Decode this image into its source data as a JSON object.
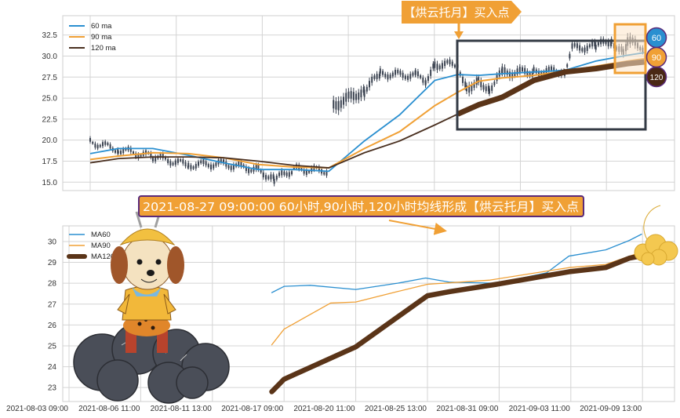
{
  "colors": {
    "ma60": "#2a8fd0",
    "ma90": "#f0a035",
    "ma120": "#5a3418",
    "candle": "#3a4250",
    "banner": "#f0a035",
    "banner_border": "#5a2a7a",
    "box": "#333a44"
  },
  "annotations": {
    "top_banner": "【烘云托月】买入点",
    "bottom_banner": "2021-08-27 09:00:00 60小时,90小时,120小时均线形成【烘云托月】买入点",
    "badge_60": "60",
    "badge_90": "90",
    "badge_120": "120"
  },
  "images": [
    "dog-on-dark-cloud",
    "crescent-moon-on-golden-cloud"
  ],
  "chart_data": [
    {
      "type": "line",
      "title": "",
      "legend": {
        "position": "top-left",
        "entries": [
          "60 ma",
          "90 ma",
          "120 ma"
        ]
      },
      "grid": true,
      "ylim": [
        14.0,
        34.8
      ],
      "yticks": [
        "15.0",
        "17.5",
        "20.0",
        "22.5",
        "25.0",
        "27.5",
        "30.0",
        "32.5"
      ],
      "x_range": [
        "2021-08-03 09:00",
        "2021-09-09 13:00"
      ],
      "candles_low_high": [
        [
          "2021-08-03 09:00",
          19.6,
          20.0
        ],
        [
          "2021-08-04 15:00",
          18.7,
          19.1
        ],
        [
          "2021-08-06 04:00",
          17.8,
          18.3
        ],
        [
          "2021-08-08 14:00",
          16.8,
          17.3
        ],
        [
          "2021-08-11 04:00",
          16.9,
          17.5
        ],
        [
          "2021-08-14 01:00",
          16.2,
          16.8
        ],
        [
          "2021-08-15 09:00",
          15.0,
          15.6
        ],
        [
          "2021-08-17 01:00",
          16.3,
          16.8
        ],
        [
          "2021-08-18 18:00",
          16.1,
          16.6
        ],
        [
          "2021-08-18 23:00",
          23.3,
          25.0
        ],
        [
          "2021-08-20 08:00",
          25.3,
          26.5
        ],
        [
          "2021-08-21 10:00",
          27.6,
          28.2
        ],
        [
          "2021-08-24 00:00",
          27.4,
          28.0
        ],
        [
          "2021-08-24 18:00",
          26.8,
          27.5
        ],
        [
          "2021-08-25 10:00",
          28.5,
          29.5
        ],
        [
          "2021-08-27 08:00",
          28.8,
          29.2
        ],
        [
          "2021-08-28 02:00",
          25.6,
          26.8
        ],
        [
          "2021-08-29 02:00",
          26.5,
          27.5
        ],
        [
          "2021-08-30 00:00",
          25.8,
          26.5
        ],
        [
          "2021-08-31 02:00",
          27.5,
          28.5
        ],
        [
          "2021-09-01 15:00",
          27.8,
          28.5
        ],
        [
          "2021-09-03 00:00",
          28.0,
          28.5
        ],
        [
          "2021-09-03 08:00",
          30.6,
          31.3
        ],
        [
          "2021-09-05 07:00",
          30.8,
          31.5
        ],
        [
          "2021-09-06 16:00",
          31.5,
          32.2
        ],
        [
          "2021-09-07 17:00",
          30.0,
          30.8
        ],
        [
          "2021-09-08 02:00",
          31.0,
          32.5
        ],
        [
          "2021-09-09 13:00",
          30.8,
          31.2
        ]
      ],
      "series": [
        {
          "name": "60 ma",
          "points": [
            [
              "2021-08-03 09:00",
              18.4
            ],
            [
              "2021-08-04 15:00",
              19.0
            ],
            [
              "2021-08-06 04:00",
              19.0
            ],
            [
              "2021-08-08 14:00",
              18.2
            ],
            [
              "2021-08-11 04:00",
              17.3
            ],
            [
              "2021-08-14 01:00",
              16.5
            ],
            [
              "2021-08-17 01:00",
              16.5
            ],
            [
              "2021-08-18 18:00",
              16.3
            ],
            [
              "2021-08-20 08:00",
              19.9
            ],
            [
              "2021-08-22 20:00",
              23.0
            ],
            [
              "2021-08-25 10:00",
              27.1
            ],
            [
              "2021-08-27 08:00",
              27.8
            ],
            [
              "2021-08-29 02:00",
              27.7
            ],
            [
              "2021-08-31 02:00",
              27.9
            ],
            [
              "2021-09-01 15:00",
              28.1
            ],
            [
              "2021-09-03 00:00",
              28.3
            ],
            [
              "2021-09-05 07:00",
              29.4
            ],
            [
              "2021-09-08 02:00",
              30.1
            ],
            [
              "2021-09-09 13:00",
              30.4
            ]
          ]
        },
        {
          "name": "90 ma",
          "points": [
            [
              "2021-08-03 09:00",
              17.7
            ],
            [
              "2021-08-04 15:00",
              18.1
            ],
            [
              "2021-08-06 04:00",
              18.5
            ],
            [
              "2021-08-08 14:00",
              18.4
            ],
            [
              "2021-08-11 04:00",
              17.9
            ],
            [
              "2021-08-14 01:00",
              17.1
            ],
            [
              "2021-08-17 01:00",
              16.8
            ],
            [
              "2021-08-18 18:00",
              16.7
            ],
            [
              "2021-08-20 08:00",
              19.0
            ],
            [
              "2021-08-22 20:00",
              21.0
            ],
            [
              "2021-08-25 10:00",
              24.1
            ],
            [
              "2021-08-27 08:00",
              25.7
            ],
            [
              "2021-08-29 02:00",
              27.0
            ],
            [
              "2021-08-31 02:00",
              27.4
            ],
            [
              "2021-09-01 15:00",
              27.7
            ],
            [
              "2021-09-03 00:00",
              28.2
            ],
            [
              "2021-09-05 07:00",
              28.8
            ],
            [
              "2021-09-08 02:00",
              29.4
            ],
            [
              "2021-09-09 13:00",
              29.7
            ]
          ]
        },
        {
          "name": "120 ma",
          "points": [
            [
              "2021-08-03 09:00",
              17.3
            ],
            [
              "2021-08-04 15:00",
              17.8
            ],
            [
              "2021-08-06 04:00",
              18.0
            ],
            [
              "2021-08-08 14:00",
              18.0
            ],
            [
              "2021-08-11 04:00",
              17.9
            ],
            [
              "2021-08-14 01:00",
              17.5
            ],
            [
              "2021-08-17 01:00",
              17.0
            ],
            [
              "2021-08-18 18:00",
              16.7
            ],
            [
              "2021-08-20 08:00",
              18.5
            ],
            [
              "2021-08-22 20:00",
              19.9
            ],
            [
              "2021-08-25 10:00",
              21.8
            ],
            [
              "2021-08-27 08:00",
              23.1
            ],
            [
              "2021-08-29 02:00",
              24.2
            ],
            [
              "2021-08-31 02:00",
              25.1
            ],
            [
              "2021-09-01 15:00",
              27.1
            ],
            [
              "2021-09-03 00:00",
              28.1
            ],
            [
              "2021-09-05 07:00",
              28.5
            ],
            [
              "2021-09-08 02:00",
              29.1
            ],
            [
              "2021-09-09 13:00",
              29.3
            ]
          ]
        }
      ]
    },
    {
      "type": "line",
      "title": "",
      "legend": {
        "position": "top-left",
        "entries": [
          "MA60",
          "MA90",
          "MA120"
        ]
      },
      "grid": true,
      "ylim": [
        22.33,
        30.75
      ],
      "yticks": [
        "23",
        "24",
        "25",
        "26",
        "27",
        "28",
        "29",
        "30"
      ],
      "xticks": [
        "2021-08-03 09:00",
        "2021-08-06 11:00",
        "2021-08-11 13:00",
        "2021-08-17 09:00",
        "2021-08-20 11:00",
        "2021-08-25 13:00",
        "2021-08-31 09:00",
        "2021-09-03 11:00",
        "2021-09-09 13:00"
      ],
      "series": [
        {
          "name": "MA60",
          "points": [
            [
              "2021-08-16 09:00",
              27.55
            ],
            [
              "2021-08-17 09:00",
              27.85
            ],
            [
              "2021-08-18 12:00",
              27.9
            ],
            [
              "2021-08-20 11:00",
              27.7
            ],
            [
              "2021-08-23 10:00",
              28.0
            ],
            [
              "2021-08-25 10:00",
              28.25
            ],
            [
              "2021-08-27 09:00",
              28.05
            ],
            [
              "2021-08-31 04:00",
              28.0
            ],
            [
              "2021-09-02 10:00",
              28.5
            ],
            [
              "2021-09-03 09:00",
              29.3
            ],
            [
              "2021-09-06 10:00",
              29.6
            ],
            [
              "2021-09-08 10:00",
              30.05
            ],
            [
              "2021-09-09 11:00",
              30.35
            ]
          ]
        },
        {
          "name": "MA90",
          "points": [
            [
              "2021-08-16 09:00",
              25.05
            ],
            [
              "2021-08-17 09:00",
              25.8
            ],
            [
              "2021-08-19 09:00",
              27.05
            ],
            [
              "2021-08-20 11:00",
              27.1
            ],
            [
              "2021-08-23 10:00",
              27.6
            ],
            [
              "2021-08-25 13:00",
              27.95
            ],
            [
              "2021-08-30 15:00",
              28.15
            ],
            [
              "2021-09-03 09:00",
              28.75
            ],
            [
              "2021-09-06 10:00",
              28.9
            ],
            [
              "2021-09-09 05:00",
              29.45
            ],
            [
              "2021-09-09 09:00",
              29.6
            ]
          ]
        },
        {
          "name": "MA120",
          "points": [
            [
              "2021-08-16 09:00",
              22.8
            ],
            [
              "2021-08-17 09:00",
              23.4
            ],
            [
              "2021-08-20 11:00",
              24.95
            ],
            [
              "2021-08-25 13:00",
              27.4
            ],
            [
              "2021-08-27 09:00",
              27.6
            ],
            [
              "2021-08-31 04:00",
              27.95
            ],
            [
              "2021-09-03 09:00",
              28.55
            ],
            [
              "2021-09-06 10:00",
              28.75
            ],
            [
              "2021-09-08 10:00",
              29.2
            ],
            [
              "2021-09-09 08:00",
              29.3
            ]
          ]
        }
      ]
    }
  ]
}
